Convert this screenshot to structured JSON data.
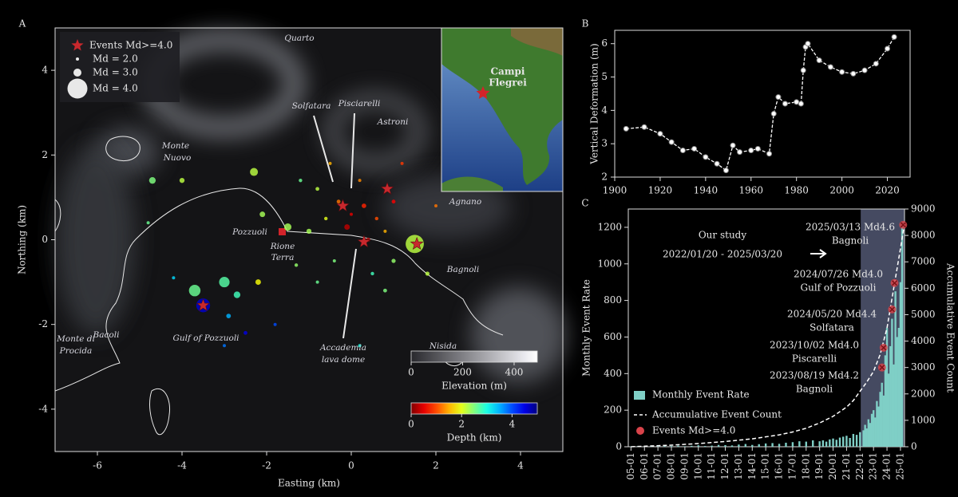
{
  "chart_data": [
    {
      "type": "scatter",
      "panel_label": "A",
      "xlabel": "Easting (km)",
      "ylabel": "Northing (km)",
      "xlim": [
        -7,
        5
      ],
      "ylim": [
        -5,
        5
      ],
      "xticks": [
        -6,
        -4,
        -2,
        0,
        2,
        4
      ],
      "yticks": [
        -4,
        -2,
        0,
        2,
        4
      ],
      "x": [
        -0.3,
        0,
        0.3,
        0.6,
        -0.1,
        0.4,
        0.8,
        -0.6,
        -0.8,
        0.2,
        -1.2,
        -1.0,
        1.0,
        -0.4,
        0.5,
        1.0,
        -0.8,
        1.5,
        -2.3,
        -4.7,
        -4.0,
        -2.1,
        -1.5,
        -3.7,
        -3.5,
        -3.0,
        -2.7,
        -2.2,
        -2.9,
        -2.5,
        -1.8,
        -3.0,
        -4.2,
        -4.8,
        2.0,
        1.2,
        -0.5,
        0.8,
        -1.3,
        1.8,
        0.2
      ],
      "y": [
        0.9,
        0.6,
        0.8,
        0.5,
        0.3,
        0.0,
        0.2,
        0.5,
        1.2,
        1.4,
        1.4,
        0.2,
        0.9,
        -0.5,
        -0.8,
        -0.5,
        -1.0,
        -0.1,
        1.6,
        1.4,
        1.4,
        0.6,
        0.3,
        -1.2,
        -1.55,
        -1.0,
        -1.3,
        -1.0,
        -1.8,
        -2.2,
        -2.0,
        -2.5,
        -0.9,
        0.4,
        0.8,
        1.8,
        1.8,
        -1.2,
        -0.6,
        -0.8,
        -2.5
      ],
      "depth": [
        1.2,
        0.5,
        0.8,
        1.0,
        0.3,
        0.2,
        1.5,
        2.0,
        2.2,
        1.3,
        2.6,
        2.3,
        0.6,
        2.5,
        2.8,
        2.4,
        2.6,
        2.2,
        2.2,
        2.5,
        2.2,
        2.3,
        2.3,
        2.6,
        4.6,
        2.7,
        2.8,
        1.9,
        3.5,
        4.5,
        4.0,
        3.8,
        3.3,
        2.6,
        1.2,
        0.9,
        1.5,
        2.5,
        2.4,
        2.2,
        3.0
      ],
      "magnitude": [
        2.2,
        2.0,
        2.4,
        2.1,
        2.6,
        2.3,
        2.0,
        2.1,
        2.2,
        2.0,
        2.1,
        2.5,
        2.2,
        2.0,
        2.1,
        2.3,
        2.0,
        3.9,
        3.0,
        2.8,
        2.5,
        2.6,
        2.9,
        3.4,
        3.6,
        3.3,
        2.8,
        2.6,
        2.4,
        2.2,
        2.0,
        2.0,
        2.0,
        2.0,
        2.0,
        2.0,
        2.0,
        2.2,
        2.1,
        2.3,
        2.0
      ],
      "major_events": {
        "name": "Events Md>=4.0",
        "color": "#c8282d",
        "x": [
          -3.5,
          -0.2,
          0.85,
          1.55,
          0.3
        ],
        "y": [
          -1.55,
          0.8,
          1.2,
          -0.1,
          -0.05
        ]
      },
      "size_legend": [
        {
          "value": 2.0,
          "label": "Md = 2.0"
        },
        {
          "value": 3.0,
          "label": "Md = 3.0"
        },
        {
          "value": 4.0,
          "label": "Md = 4.0"
        }
      ],
      "annotations": [
        "Quarto",
        "Solfatara",
        "Pisciarelli",
        "Astroni",
        "Monte",
        "Nuovo",
        "Agnano",
        "Pozzuoli",
        "Rione",
        "Terra",
        "Bagnoli",
        "Bacoli",
        "Monte di",
        "Procida",
        "Gulf of Pozzuoli",
        "Nisida",
        "Accademia",
        "lava dome"
      ],
      "inset_label": [
        "Campi",
        "Flegrei"
      ],
      "colorbars": [
        {
          "label": "Elevation (m)",
          "clim": [
            0,
            490
          ],
          "ticks": [
            0,
            200,
            400
          ],
          "colormap": "gray"
        },
        {
          "label": "Depth (km)",
          "clim": [
            0,
            5
          ],
          "ticks": [
            0,
            2,
            4
          ],
          "colormap": "jet_r"
        }
      ]
    },
    {
      "type": "line",
      "panel_label": "B",
      "ylabel": "Vertical Deformation (m)",
      "color": "#ffffff",
      "xlim": [
        1900,
        2030
      ],
      "ylim": [
        2,
        6.4
      ],
      "xticks": [
        1900,
        1920,
        1940,
        1960,
        1980,
        2000,
        2020
      ],
      "yticks": [
        2,
        3,
        4,
        5,
        6
      ],
      "x": [
        1905,
        1913,
        1920,
        1925,
        1930,
        1935,
        1940,
        1945,
        1949,
        1952,
        1955,
        1960,
        1963,
        1968,
        1970,
        1972,
        1975,
        1980,
        1982,
        1983,
        1984,
        1985,
        1990,
        1995,
        2000,
        2005,
        2010,
        2015,
        2020,
        2023
      ],
      "values": [
        3.45,
        3.5,
        3.3,
        3.05,
        2.8,
        2.85,
        2.6,
        2.4,
        2.2,
        2.95,
        2.75,
        2.8,
        2.85,
        2.7,
        3.9,
        4.4,
        4.2,
        4.25,
        4.2,
        5.2,
        5.9,
        6.0,
        5.5,
        5.3,
        5.15,
        5.1,
        5.2,
        5.4,
        5.85,
        6.2
      ]
    },
    {
      "type": "bar",
      "panel_label": "C",
      "ylabel": "Monthly Event Rate",
      "y2label": "Accumulative Event Count",
      "xlim": [
        2004.8,
        2025.3
      ],
      "ylim": [
        0,
        1300
      ],
      "yticks": [
        0,
        200,
        400,
        600,
        800,
        1000,
        1200
      ],
      "y2lim": [
        0,
        9000
      ],
      "y2ticks": [
        0,
        1000,
        2000,
        3000,
        4000,
        5000,
        6000,
        7000,
        8000,
        9000
      ],
      "xticks": [
        {
          "value": 2005,
          "label": "05-01"
        },
        {
          "value": 2006,
          "label": "06-01"
        },
        {
          "value": 2007,
          "label": "07-01"
        },
        {
          "value": 2008,
          "label": "08-01"
        },
        {
          "value": 2009,
          "label": "09-01"
        },
        {
          "value": 2010,
          "label": "10-01"
        },
        {
          "value": 2011,
          "label": "11-01"
        },
        {
          "value": 2012,
          "label": "12-01"
        },
        {
          "value": 2013,
          "label": "13-01"
        },
        {
          "value": 2014,
          "label": "14-01"
        },
        {
          "value": 2015,
          "label": "15-01"
        },
        {
          "value": 2016,
          "label": "16-01"
        },
        {
          "value": 2017,
          "label": "17-01"
        },
        {
          "value": 2018,
          "label": "18-01"
        },
        {
          "value": 2019,
          "label": "19-01"
        },
        {
          "value": 2020,
          "label": "20-01"
        },
        {
          "value": 2021,
          "label": "21-01"
        },
        {
          "value": 2022,
          "label": "22-01"
        },
        {
          "value": 2023,
          "label": "23-01"
        },
        {
          "value": 2024,
          "label": "24-01"
        },
        {
          "value": 2025,
          "label": "25-01"
        }
      ],
      "series": [
        {
          "name": "Monthly Event Rate",
          "color": "#7fcfc6",
          "x": [
            2005.0,
            2005.5,
            2006.0,
            2006.5,
            2007.0,
            2007.5,
            2008.0,
            2008.5,
            2009.0,
            2009.5,
            2010.0,
            2010.5,
            2011.0,
            2011.5,
            2012.0,
            2012.5,
            2013.0,
            2013.5,
            2014.0,
            2014.5,
            2015.0,
            2015.5,
            2016.0,
            2016.5,
            2017.0,
            2017.5,
            2018.0,
            2018.5,
            2019.0,
            2019.25,
            2019.5,
            2019.75,
            2020.0,
            2020.25,
            2020.5,
            2020.75,
            2021.0,
            2021.25,
            2021.5,
            2021.75,
            2022.0,
            2022.25,
            2022.375,
            2022.5,
            2022.625,
            2022.75,
            2022.875,
            2023.0,
            2023.125,
            2023.25,
            2023.375,
            2023.5,
            2023.625,
            2023.75,
            2023.875,
            2024.0,
            2024.125,
            2024.25,
            2024.375,
            2024.5,
            2024.625,
            2024.75,
            2024.875,
            2025.0,
            2025.125
          ],
          "values": [
            2,
            3,
            2,
            4,
            3,
            5,
            4,
            6,
            3,
            5,
            8,
            4,
            6,
            10,
            9,
            7,
            12,
            15,
            10,
            14,
            18,
            20,
            16,
            22,
            25,
            30,
            28,
            35,
            30,
            35,
            28,
            40,
            45,
            38,
            50,
            55,
            60,
            48,
            70,
            65,
            80,
            90,
            120,
            100,
            150,
            130,
            180,
            200,
            160,
            250,
            220,
            300,
            350,
            280,
            500,
            650,
            400,
            550,
            700,
            450,
            850,
            600,
            650,
            900,
            1200
          ]
        },
        {
          "name": "Accumulative Event Count",
          "color": "#ffffff",
          "axis": "y2",
          "x": [
            2005,
            2008,
            2010,
            2012,
            2014,
            2016,
            2017,
            2018,
            2019,
            2020,
            2021,
            2021.5,
            2022,
            2022.5,
            2023,
            2023.5,
            2024,
            2024.5,
            2025,
            2025.25
          ],
          "values": [
            0,
            60,
            120,
            200,
            300,
            450,
            560,
            700,
            900,
            1150,
            1500,
            1750,
            2100,
            2450,
            2850,
            3500,
            4500,
            6000,
            7500,
            8300
          ]
        },
        {
          "name": "Events Md>=4.0",
          "color": "#d9434a",
          "axis": "y2",
          "x": [
            2023.63,
            2023.75,
            2024.38,
            2024.56,
            2025.2
          ],
          "values": [
            3000,
            3750,
            5200,
            6200,
            8400
          ]
        }
      ],
      "highlight": {
        "range": [
          2022.05,
          2025.3
        ],
        "label_lines": [
          "Our study",
          "2022/01/20 - 2025/03/20"
        ]
      },
      "event_labels": [
        [
          "2023/08/19 Md4.2",
          "Bagnoli"
        ],
        [
          "2023/10/02 Md4.0",
          "Piscarelli"
        ],
        [
          "2024/05/20 Md4.4",
          "Solfatara"
        ],
        [
          "2024/07/26 Md4.0",
          "Gulf of Pozzuoli"
        ],
        [
          "2025/03/13 Md4.6",
          "Bagnoli"
        ]
      ]
    }
  ]
}
